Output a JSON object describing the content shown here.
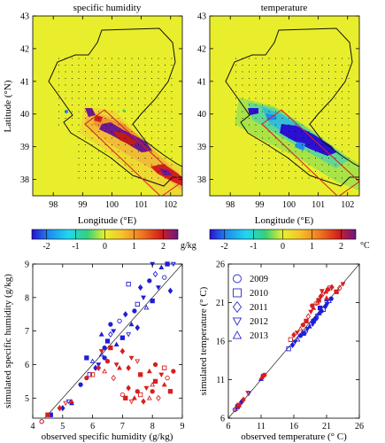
{
  "chart_data": [
    {
      "type": "heatmap",
      "title": "specific humidity",
      "xlabel": "Longitude (°E)",
      "ylabel": "Latitude (°N)",
      "x_ticks": [
        "98",
        "99",
        "100",
        "101",
        "102"
      ],
      "y_ticks": [
        "38",
        "39",
        "40",
        "41",
        "42",
        "43"
      ],
      "xlim": [
        97.3,
        102.4
      ],
      "ylim": [
        37.5,
        43
      ],
      "colorbar": {
        "ticks": [
          "-2",
          "-1",
          "0",
          "1",
          "2"
        ],
        "unit": "g/kg",
        "range": [
          -2.5,
          2.5
        ]
      }
    },
    {
      "type": "heatmap",
      "title": "temperature",
      "xlabel": "Longitude (°E)",
      "ylabel": "",
      "x_ticks": [
        "98",
        "99",
        "100",
        "101",
        "102"
      ],
      "y_ticks": [
        "38",
        "39",
        "40",
        "41",
        "42",
        "43"
      ],
      "xlim": [
        97.3,
        102.4
      ],
      "ylim": [
        37.5,
        43
      ],
      "colorbar": {
        "ticks": [
          "-2",
          "-1",
          "0",
          "1",
          "2"
        ],
        "unit": "°C",
        "range": [
          -2.5,
          2.5
        ]
      }
    },
    {
      "type": "scatter",
      "xlabel": "observed specific humidity (g/kg)",
      "ylabel": "simulated specific humidity (g/kg)",
      "xlim": [
        4,
        9
      ],
      "ylim": [
        4.4,
        9
      ],
      "x_ticks": [
        "4",
        "5",
        "6",
        "7",
        "8",
        "9"
      ],
      "y_ticks": [
        "5",
        "6",
        "7",
        "8",
        "9"
      ],
      "one_to_one_line": true,
      "series": [
        {
          "color": "#1f1fd6",
          "points": [
            [
              4.3,
              4.3
            ],
            [
              4.6,
              4.5
            ],
            [
              5.0,
              4.7
            ],
            [
              5.2,
              4.9
            ],
            [
              5.3,
              4.85
            ],
            [
              5.6,
              5.4
            ],
            [
              5.9,
              5.7
            ],
            [
              6.1,
              5.9
            ],
            [
              6.2,
              6.0
            ],
            [
              6.3,
              6.3
            ],
            [
              6.4,
              6.5
            ],
            [
              6.5,
              6.7
            ],
            [
              6.6,
              6.9
            ],
            [
              6.7,
              7.0
            ],
            [
              6.8,
              6.6
            ],
            [
              6.9,
              7.3
            ],
            [
              7.0,
              6.8
            ],
            [
              7.1,
              7.5
            ],
            [
              7.2,
              6.9
            ],
            [
              7.3,
              7.2
            ],
            [
              7.4,
              7.6
            ],
            [
              7.5,
              7.8
            ],
            [
              7.5,
              7.1
            ],
            [
              7.7,
              8.0
            ],
            [
              7.8,
              7.7
            ],
            [
              7.9,
              8.5
            ],
            [
              8.0,
              7.9
            ],
            [
              8.1,
              8.7
            ],
            [
              8.2,
              8.3
            ],
            [
              8.3,
              8.9
            ],
            [
              8.4,
              8.6
            ],
            [
              8.5,
              9.0
            ],
            [
              8.6,
              8.2
            ],
            [
              8.7,
              9.0
            ],
            [
              6.3,
              6.9
            ],
            [
              6.6,
              7.2
            ],
            [
              7.2,
              8.4
            ],
            [
              7.6,
              8.3
            ],
            [
              8.0,
              9.0
            ],
            [
              6.0,
              6.1
            ],
            [
              6.4,
              6.2
            ],
            [
              5.8,
              6.2
            ]
          ]
        },
        {
          "color": "#d62020",
          "points": [
            [
              4.3,
              4.3
            ],
            [
              4.5,
              4.5
            ],
            [
              4.9,
              4.7
            ],
            [
              5.1,
              4.85
            ],
            [
              5.3,
              4.9
            ],
            [
              5.8,
              5.6
            ],
            [
              6.0,
              5.7
            ],
            [
              6.2,
              5.9
            ],
            [
              6.3,
              6.4
            ],
            [
              6.4,
              5.8
            ],
            [
              6.5,
              6.1
            ],
            [
              6.6,
              6.5
            ],
            [
              6.7,
              5.6
            ],
            [
              6.8,
              6.0
            ],
            [
              6.9,
              5.9
            ],
            [
              7.0,
              5.1
            ],
            [
              7.1,
              5.0
            ],
            [
              7.2,
              5.3
            ],
            [
              7.3,
              4.9
            ],
            [
              7.4,
              5.0
            ],
            [
              7.5,
              5.2
            ],
            [
              7.6,
              5.1
            ],
            [
              7.7,
              4.9
            ],
            [
              7.8,
              5.3
            ],
            [
              7.9,
              5.0
            ],
            [
              8.0,
              5.2
            ],
            [
              8.1,
              5.5
            ],
            [
              8.2,
              5.0
            ],
            [
              8.3,
              5.7
            ],
            [
              8.4,
              5.4
            ],
            [
              8.5,
              5.6
            ],
            [
              8.6,
              5.2
            ],
            [
              7.2,
              5.9
            ],
            [
              7.5,
              6.1
            ],
            [
              7.9,
              5.8
            ],
            [
              8.1,
              6.0
            ],
            [
              8.4,
              5.9
            ],
            [
              7.0,
              6.4
            ],
            [
              7.3,
              6.2
            ],
            [
              8.0,
              5.4
            ],
            [
              8.7,
              5.8
            ],
            [
              7.6,
              5.7
            ]
          ]
        }
      ]
    },
    {
      "type": "scatter",
      "xlabel": "observed temperature (° C)",
      "ylabel": "simulated temperature (° C)",
      "xlim": [
        6,
        26
      ],
      "ylim": [
        6,
        26
      ],
      "x_ticks": [
        "6",
        "11",
        "16",
        "21",
        "26"
      ],
      "y_ticks": [
        "6",
        "11",
        "16",
        "21",
        "26"
      ],
      "one_to_one_line": true,
      "legend": {
        "placement": "top-left",
        "entries": [
          {
            "label": "2009",
            "marker": "circle"
          },
          {
            "label": "2010",
            "marker": "square"
          },
          {
            "label": "2011",
            "marker": "diamond"
          },
          {
            "label": "2012",
            "marker": "triangle-down"
          },
          {
            "label": "2013",
            "marker": "triangle-up"
          }
        ]
      },
      "series": [
        {
          "color": "#1f1fd6",
          "points": [
            [
              7.0,
              7.1
            ],
            [
              7.4,
              7.5
            ],
            [
              8.0,
              8.1
            ],
            [
              9.1,
              9.2
            ],
            [
              11.0,
              11.1
            ],
            [
              11.3,
              11.5
            ],
            [
              15.2,
              15.0
            ],
            [
              15.8,
              15.5
            ],
            [
              16.2,
              15.9
            ],
            [
              16.6,
              16.2
            ],
            [
              17.0,
              16.7
            ],
            [
              17.5,
              17.0
            ],
            [
              17.8,
              17.2
            ],
            [
              18.1,
              17.6
            ],
            [
              18.4,
              17.9
            ],
            [
              18.7,
              18.3
            ],
            [
              19.0,
              18.6
            ],
            [
              19.3,
              18.9
            ],
            [
              19.6,
              19.3
            ],
            [
              19.9,
              19.6
            ],
            [
              20.2,
              19.9
            ],
            [
              20.5,
              20.1
            ],
            [
              20.8,
              20.5
            ],
            [
              21.1,
              20.8
            ],
            [
              21.4,
              21.2
            ],
            [
              21.7,
              21.5
            ],
            [
              20.0,
              20.3
            ],
            [
              19.5,
              19.0
            ],
            [
              18.9,
              18.2
            ],
            [
              21.0,
              21.4
            ]
          ]
        },
        {
          "color": "#d62020",
          "points": [
            [
              7.2,
              7.2
            ],
            [
              7.6,
              7.7
            ],
            [
              8.3,
              8.4
            ],
            [
              9.0,
              9.3
            ],
            [
              11.1,
              11.3
            ],
            [
              11.5,
              11.6
            ],
            [
              15.5,
              16.2
            ],
            [
              16.0,
              16.8
            ],
            [
              16.5,
              17.1
            ],
            [
              17.0,
              17.6
            ],
            [
              17.4,
              18.1
            ],
            [
              17.9,
              18.6
            ],
            [
              18.2,
              19.2
            ],
            [
              18.6,
              19.8
            ],
            [
              19.0,
              20.3
            ],
            [
              19.4,
              20.9
            ],
            [
              19.8,
              21.3
            ],
            [
              20.1,
              21.8
            ],
            [
              20.5,
              22.1
            ],
            [
              20.9,
              22.4
            ],
            [
              21.2,
              22.7
            ],
            [
              21.5,
              22.9
            ],
            [
              21.8,
              23.0
            ],
            [
              20.3,
              22.5
            ],
            [
              19.6,
              21.0
            ],
            [
              18.8,
              20.6
            ],
            [
              22.5,
              22.4
            ],
            [
              23.0,
              22.9
            ],
            [
              23.5,
              23.4
            ],
            [
              21.0,
              21.6
            ]
          ]
        }
      ]
    }
  ]
}
